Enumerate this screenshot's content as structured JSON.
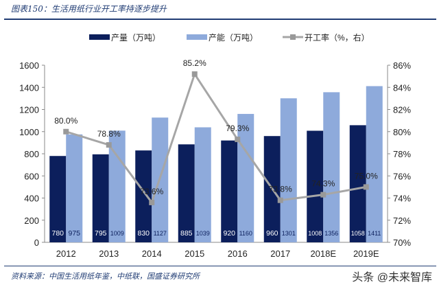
{
  "title": "图表150：生活用纸行业开工率持逐步提升",
  "source": "资料来源：中国生活用纸年鉴，中纸联，国盛证券研究所",
  "watermark": "头条 @未来智库",
  "chart_data": {
    "type": "bar+line",
    "categories": [
      "2012",
      "2013",
      "2014",
      "2015",
      "2016",
      "2017",
      "2018E",
      "2019E"
    ],
    "series": [
      {
        "name": "产量（万吨）",
        "type": "bar",
        "axis": "left",
        "color": "#0c1f5c",
        "values": [
          780,
          795,
          830,
          885,
          920,
          960,
          1008,
          1058
        ]
      },
      {
        "name": "产能（万吨）",
        "type": "bar",
        "axis": "left",
        "color": "#8eaadb",
        "values": [
          975,
          1009,
          1127,
          1039,
          1160,
          1301,
          1356,
          1411
        ]
      },
      {
        "name": "开工率（%，右）",
        "type": "line",
        "axis": "right",
        "color": "#a6a6a6",
        "values": [
          80.0,
          78.8,
          73.6,
          85.2,
          79.3,
          73.8,
          74.3,
          75.0
        ],
        "labels": [
          "80.0%",
          "78.8%",
          "73.6%",
          "85.2%",
          "79.3%",
          "73.8%",
          "74.3%",
          "75.0%"
        ]
      }
    ],
    "ylim_left": [
      0,
      1600
    ],
    "yticks_left": [
      "0",
      "200",
      "400",
      "600",
      "800",
      "1000",
      "1200",
      "1400",
      "1600"
    ],
    "ylim_right": [
      70,
      86
    ],
    "yticks_right": [
      "70%",
      "72%",
      "74%",
      "76%",
      "78%",
      "80%",
      "82%",
      "84%",
      "86%"
    ],
    "legend": "top",
    "grid": false
  }
}
